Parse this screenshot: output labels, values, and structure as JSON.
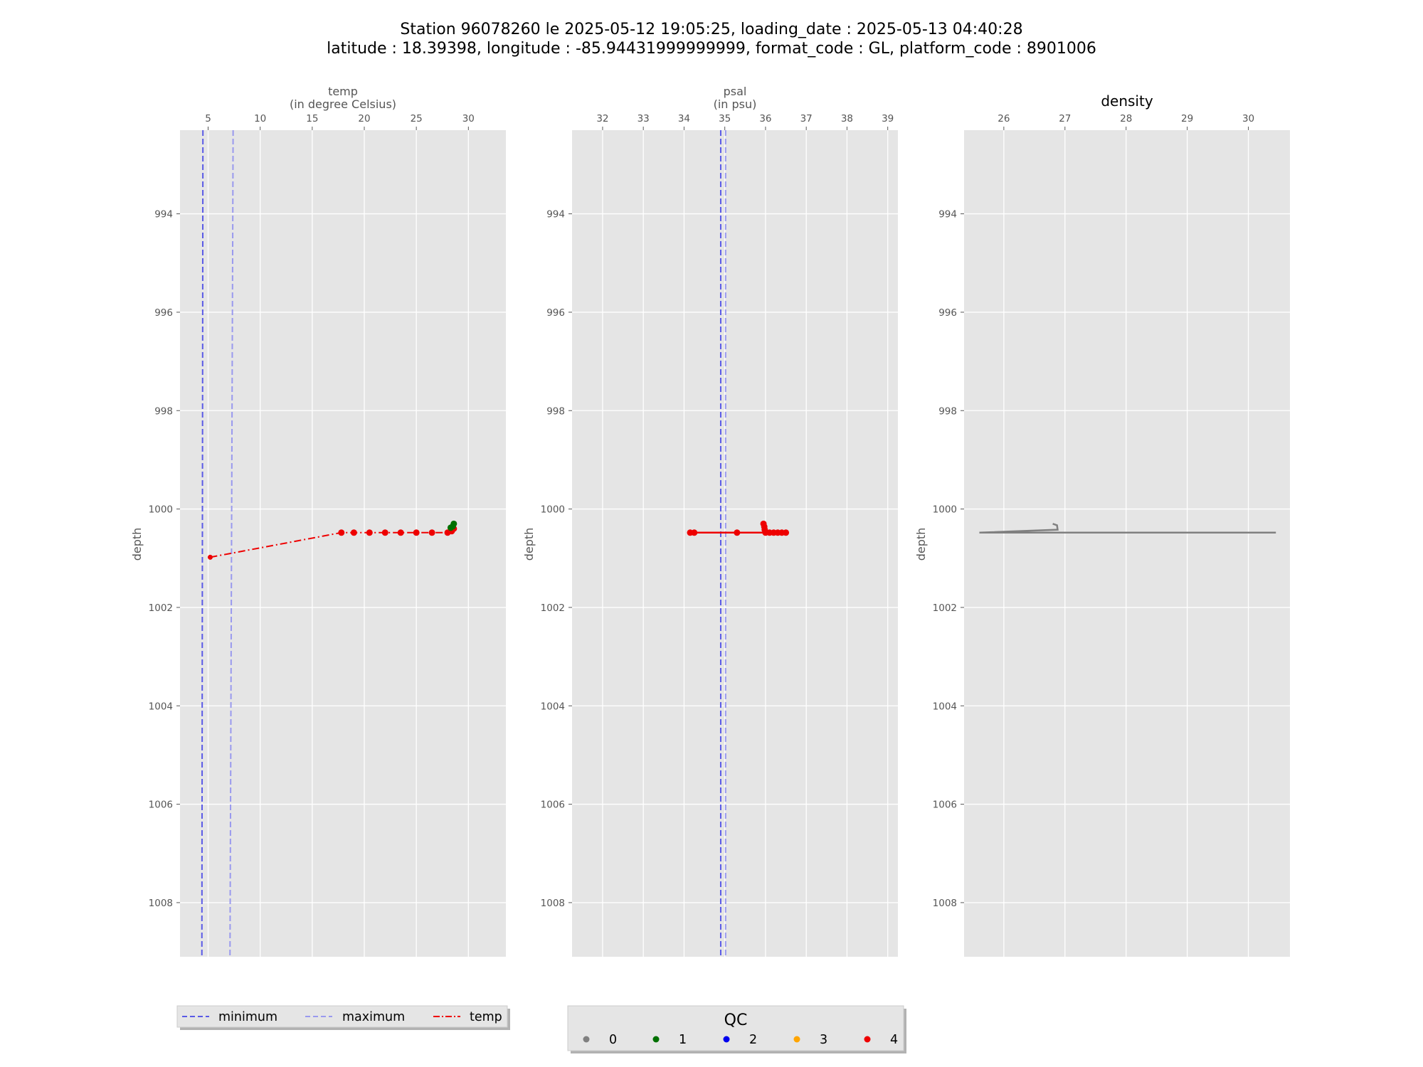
{
  "figure": {
    "title_line1": "Station 96078260 le 2025-05-12 19:05:25, loading_date : 2025-05-13 04:40:28",
    "title_line2": "latitude : 18.39398, longitude : -85.94431999999999, format_code : GL, platform_code : 8901006"
  },
  "legends": {
    "lines": [
      {
        "label": "minimum",
        "color": "#5a5ae6",
        "style": "dashed"
      },
      {
        "label": "maximum",
        "color": "#9999ee",
        "style": "dashed"
      },
      {
        "label": "temp",
        "color": "#ee0000",
        "style": "dashdot"
      }
    ],
    "qc": {
      "title": "QC",
      "items": [
        {
          "label": "0",
          "color": "#808080"
        },
        {
          "label": "1",
          "color": "#007000"
        },
        {
          "label": "2",
          "color": "#0000ee"
        },
        {
          "label": "3",
          "color": "#ffa500"
        },
        {
          "label": "4",
          "color": "#ee0000"
        }
      ]
    }
  },
  "chart_data": [
    {
      "type": "line",
      "xlabel": "temp",
      "xlabel_unit": "(in degree Celsius)",
      "ylabel": "depth",
      "xlim": [
        2.3,
        33.6
      ],
      "ylim": [
        1009.1,
        992.3
      ],
      "y_inverted": true,
      "xticks": [
        5,
        10,
        15,
        20,
        25,
        30
      ],
      "yticks": [
        994,
        996,
        998,
        1000,
        1002,
        1004,
        1006,
        1008
      ],
      "grid": true,
      "reference_lines": [
        {
          "name": "minimum",
          "x_top": 4.5,
          "x_bottom": 4.4,
          "color": "#5a5ae6"
        },
        {
          "name": "maximum",
          "x_top": 7.4,
          "x_bottom": 7.1,
          "color": "#9999ee"
        }
      ],
      "series": [
        {
          "name": "temp",
          "style": "dashdot",
          "color": "#ee0000",
          "points": [
            {
              "x": 5.2,
              "y": 1000.98
            },
            {
              "x": 17.8,
              "y": 1000.48
            },
            {
              "x": 19.0,
              "y": 1000.48
            },
            {
              "x": 20.5,
              "y": 1000.48
            },
            {
              "x": 22.0,
              "y": 1000.48
            },
            {
              "x": 23.5,
              "y": 1000.48
            },
            {
              "x": 25.0,
              "y": 1000.48
            },
            {
              "x": 26.5,
              "y": 1000.48
            },
            {
              "x": 28.0,
              "y": 1000.48
            },
            {
              "x": 28.4,
              "y": 1000.45
            },
            {
              "x": 28.6,
              "y": 1000.4
            },
            {
              "x": 28.5,
              "y": 1000.35
            },
            {
              "x": 28.6,
              "y": 1000.3
            }
          ]
        }
      ],
      "qc_points": [
        {
          "x": 5.2,
          "y": 1000.98,
          "qc": "4"
        },
        {
          "x": 17.8,
          "y": 1000.48,
          "qc": "4"
        },
        {
          "x": 19.0,
          "y": 1000.48,
          "qc": "4"
        },
        {
          "x": 20.5,
          "y": 1000.48,
          "qc": "4"
        },
        {
          "x": 22.0,
          "y": 1000.48,
          "qc": "4"
        },
        {
          "x": 23.5,
          "y": 1000.48,
          "qc": "4"
        },
        {
          "x": 25.0,
          "y": 1000.48,
          "qc": "4"
        },
        {
          "x": 26.5,
          "y": 1000.48,
          "qc": "4"
        },
        {
          "x": 28.0,
          "y": 1000.48,
          "qc": "4"
        },
        {
          "x": 28.4,
          "y": 1000.45,
          "qc": "4"
        },
        {
          "x": 28.6,
          "y": 1000.4,
          "qc": "4"
        },
        {
          "x": 28.3,
          "y": 1000.38,
          "qc": "1"
        },
        {
          "x": 28.5,
          "y": 1000.35,
          "qc": "1"
        },
        {
          "x": 28.6,
          "y": 1000.3,
          "qc": "1"
        }
      ]
    },
    {
      "type": "line",
      "xlabel": "psal",
      "xlabel_unit": "(in psu)",
      "ylabel": "depth",
      "xlim": [
        31.25,
        39.25
      ],
      "ylim": [
        1009.1,
        992.3
      ],
      "y_inverted": true,
      "xticks": [
        32,
        33,
        34,
        35,
        36,
        37,
        38,
        39
      ],
      "yticks": [
        994,
        996,
        998,
        1000,
        1002,
        1004,
        1006,
        1008
      ],
      "grid": true,
      "reference_lines": [
        {
          "name": "minimum",
          "x_top": 34.9,
          "x_bottom": 34.9,
          "color": "#5a5ae6"
        },
        {
          "name": "maximum",
          "x_top": 35.02,
          "x_bottom": 35.02,
          "color": "#9999ee"
        }
      ],
      "series": [
        {
          "name": "psal",
          "style": "solid",
          "color": "#ee0000",
          "points": [
            {
              "x": 34.15,
              "y": 1000.48
            },
            {
              "x": 34.25,
              "y": 1000.48
            },
            {
              "x": 35.3,
              "y": 1000.48
            },
            {
              "x": 35.95,
              "y": 1000.48
            },
            {
              "x": 36.2,
              "y": 1000.48
            },
            {
              "x": 36.5,
              "y": 1000.48
            }
          ]
        }
      ],
      "qc_points": [
        {
          "x": 34.15,
          "y": 1000.48,
          "qc": "4"
        },
        {
          "x": 34.25,
          "y": 1000.48,
          "qc": "4"
        },
        {
          "x": 35.3,
          "y": 1000.48,
          "qc": "4"
        },
        {
          "x": 35.95,
          "y": 1000.3,
          "qc": "4"
        },
        {
          "x": 35.97,
          "y": 1000.36,
          "qc": "4"
        },
        {
          "x": 35.98,
          "y": 1000.42,
          "qc": "4"
        },
        {
          "x": 36.0,
          "y": 1000.48,
          "qc": "4"
        },
        {
          "x": 36.1,
          "y": 1000.48,
          "qc": "4"
        },
        {
          "x": 36.2,
          "y": 1000.48,
          "qc": "4"
        },
        {
          "x": 36.3,
          "y": 1000.48,
          "qc": "4"
        },
        {
          "x": 36.4,
          "y": 1000.48,
          "qc": "4"
        },
        {
          "x": 36.5,
          "y": 1000.48,
          "qc": "4"
        }
      ]
    },
    {
      "type": "line",
      "title": "density",
      "ylabel": "depth",
      "xlim": [
        25.35,
        30.68
      ],
      "ylim": [
        1009.1,
        992.3
      ],
      "y_inverted": true,
      "xticks": [
        26,
        27,
        28,
        29,
        30
      ],
      "yticks": [
        994,
        996,
        998,
        1000,
        1002,
        1004,
        1006,
        1008
      ],
      "grid": true,
      "series": [
        {
          "name": "density",
          "style": "solid",
          "color": "#808080",
          "points": [
            {
              "x": 26.8,
              "y": 1000.3
            },
            {
              "x": 26.87,
              "y": 1000.33
            },
            {
              "x": 26.88,
              "y": 1000.42
            },
            {
              "x": 25.6,
              "y": 1000.48
            },
            {
              "x": 26.9,
              "y": 1000.48
            },
            {
              "x": 28.5,
              "y": 1000.48
            },
            {
              "x": 30.45,
              "y": 1000.48
            }
          ]
        }
      ]
    }
  ]
}
